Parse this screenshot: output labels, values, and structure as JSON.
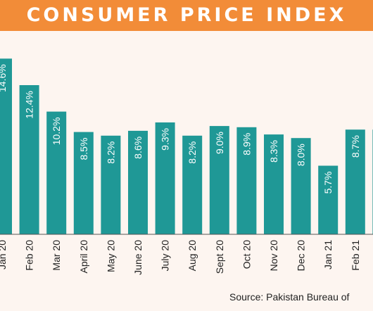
{
  "header": {
    "title": "CONSUMER PRICE INDEX"
  },
  "source": "Source: Pakistan Bureau of",
  "colors": {
    "header_bg": "#f28c38",
    "bar": "#1f9896",
    "background": "#fdf5f0"
  },
  "chart_data": {
    "type": "bar",
    "title": "CONSUMER PRICE INDEX",
    "xlabel": "",
    "ylabel": "",
    "categories": [
      "Jan 20",
      "Feb 20",
      "Mar 20",
      "April 20",
      "May 20",
      "June 20",
      "July 20",
      "Aug 20",
      "Sept 20",
      "Oct 20",
      "Nov 20",
      "Dec 20",
      "Jan 21",
      "Feb 21",
      ""
    ],
    "values": [
      14.6,
      12.4,
      10.2,
      8.5,
      8.2,
      8.6,
      9.3,
      8.2,
      9.0,
      8.9,
      8.3,
      8.0,
      5.7,
      8.7,
      8.7
    ],
    "data_labels": [
      "14.6%",
      "12.4%",
      "10.2%",
      "8.5%",
      "8.2%",
      "8.6%",
      "9.3%",
      "8.2%",
      "9.0%",
      "8.9%",
      "8.3%",
      "8.0%",
      "5.7%",
      "8.7%",
      ""
    ],
    "ylim": [
      0,
      15
    ],
    "grid": false,
    "legend": "none"
  }
}
